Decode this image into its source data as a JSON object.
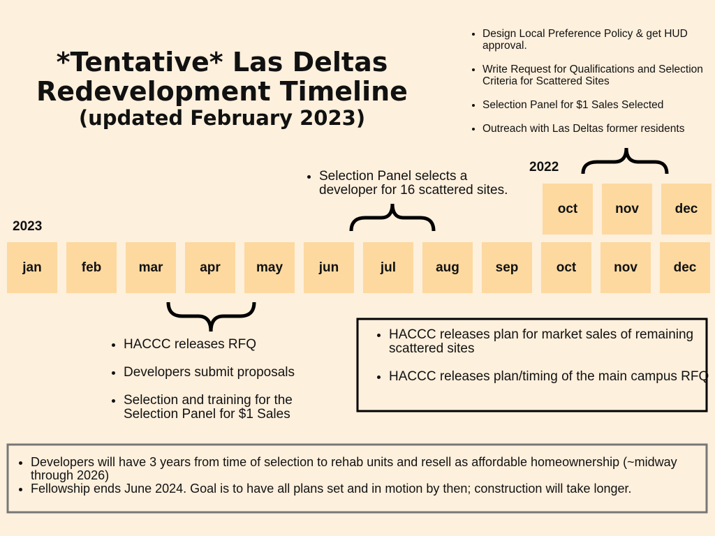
{
  "header": {
    "title_lines": [
      "*Tentative* Las Deltas",
      "Redevelopment Timeline"
    ],
    "subtitle": "(updated February 2023)"
  },
  "top_notes": [
    "Design Local Preference Policy & get HUD approval.",
    "Write Request for Qualifications and Selection Criteria for Scattered Sites",
    "Selection Panel for $1 Sales Selected",
    "Outreach with Las Deltas former residents"
  ],
  "year_2022": {
    "label": "2022",
    "months": [
      "oct",
      "nov",
      "dec"
    ]
  },
  "year_2023": {
    "label": "2023",
    "months": [
      "jan",
      "feb",
      "mar",
      "apr",
      "may",
      "jun",
      "jul",
      "aug",
      "sep",
      "oct",
      "nov",
      "dec"
    ]
  },
  "summer_notes": [
    "Selection Panel selects a developer for 16 scattered sites."
  ],
  "spring_notes": [
    "HACCC releases RFQ",
    "Developers submit proposals",
    "Selection and training for the Selection Panel for $1 Sales"
  ],
  "fall_box": [
    "HACCC releases plan for market sales of remaining scattered sites",
    "HACCC releases plan/timing of the main campus RFQ"
  ],
  "footer": [
    "Developers will have 3 years from time of selection to rehab units and resell as affordable homeownership (~midway through 2026)",
    "Fellowship ends June 2024. Goal is to have all plans set and in motion by then; construction will take longer."
  ]
}
